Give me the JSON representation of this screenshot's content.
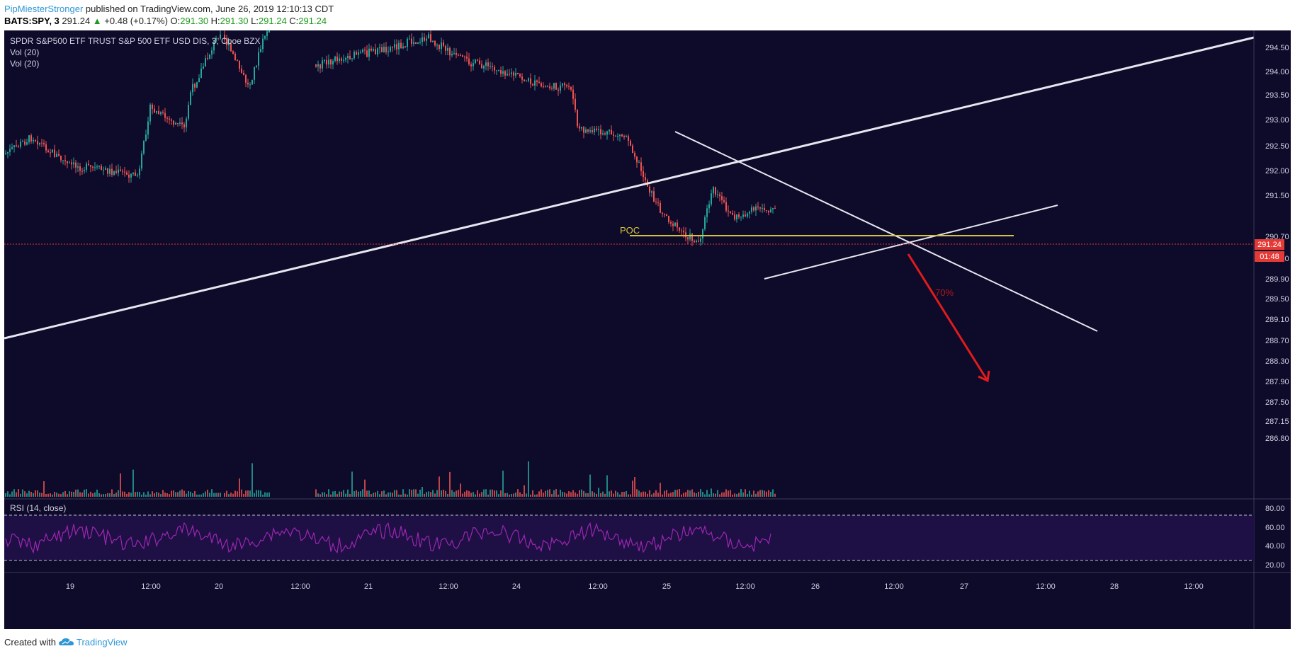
{
  "header": {
    "author": "PipMiesterStronger",
    "published_text": " published on TradingView.com, June 26, 2019 12:10:13 CDT",
    "symbol": "BATS:SPY, 3",
    "last": "291.24",
    "change_arrow": "▲",
    "change": "+0.48 (+0.17%)",
    "o_label": "O:",
    "o": "291.30",
    "h_label": "H:",
    "h": "291.30",
    "l_label": "L:",
    "l": "291.24",
    "c_label": "C:",
    "c": "291.24"
  },
  "legend": {
    "title": "SPDR S&P500 ETF TRUST S&P 500 ETF USD DIS, 3, Cboe BZX",
    "vol1": "Vol (20)",
    "vol2": "Vol (20)"
  },
  "price_axis": {
    "ticks": [
      "294.50",
      "294.00",
      "293.50",
      "293.00",
      "292.50",
      "292.00",
      "291.50",
      "290.70",
      "290.30",
      "289.90",
      "289.50",
      "289.10",
      "288.70",
      "288.30",
      "287.90",
      "287.50",
      "287.15",
      "286.80"
    ],
    "last_price_label": "291.24",
    "countdown_label": "01:48"
  },
  "rsi": {
    "label": "RSI (14, close)",
    "ticks": [
      "80.00",
      "60.00",
      "40.00",
      "20.00"
    ]
  },
  "time_axis": {
    "ticks": [
      "19",
      "12:00",
      "20",
      "12:00",
      "21",
      "12:00",
      "24",
      "12:00",
      "25",
      "12:00",
      "26",
      "12:00",
      "27",
      "12:00",
      "28",
      "12:00"
    ]
  },
  "annotations": {
    "poc": "POC",
    "probability": "70%"
  },
  "footer": {
    "created_with": "Created with",
    "brand": "TradingView"
  },
  "colors": {
    "background": "#0d0a2a",
    "up_candle": "#26a69a",
    "down_candle": "#ef5350",
    "poc_line": "#d4c43c",
    "trend_line": "#e6e6f0",
    "arrow": "#e01b1b",
    "rsi_line": "#9c27b0",
    "price_label": "#e53935"
  },
  "icons": {
    "tradingview_logo": "tradingview-cloud-icon"
  }
}
